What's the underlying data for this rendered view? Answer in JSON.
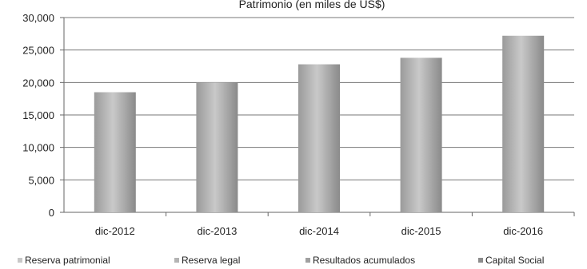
{
  "chart_data": {
    "type": "bar",
    "title": "Patrimonio (en miles de US$)",
    "categories": [
      "dic-2012",
      "dic-2013",
      "dic-2014",
      "dic-2015",
      "dic-2016"
    ],
    "series": [
      {
        "name": "Reserva patrimonial",
        "values": [
          0,
          0,
          0,
          0,
          0
        ],
        "color": "#c8c8c8"
      },
      {
        "name": "Reserva legal",
        "values": [
          0,
          0,
          0,
          0,
          0
        ],
        "color": "#b4b4b4"
      },
      {
        "name": "Resultados acumulados",
        "values": [
          0,
          0,
          0,
          0,
          0
        ],
        "color": "#a0a0a0"
      },
      {
        "name": "Capital Social",
        "values": [
          18500,
          20000,
          22800,
          23800,
          27200
        ],
        "color": "#8c8c8c"
      }
    ],
    "yticks": [
      "0",
      "5,000",
      "10,000",
      "15,000",
      "20,000",
      "25,000",
      "30,000"
    ],
    "ylim": [
      0,
      30000
    ],
    "grid": true,
    "legend_position": "bottom"
  }
}
